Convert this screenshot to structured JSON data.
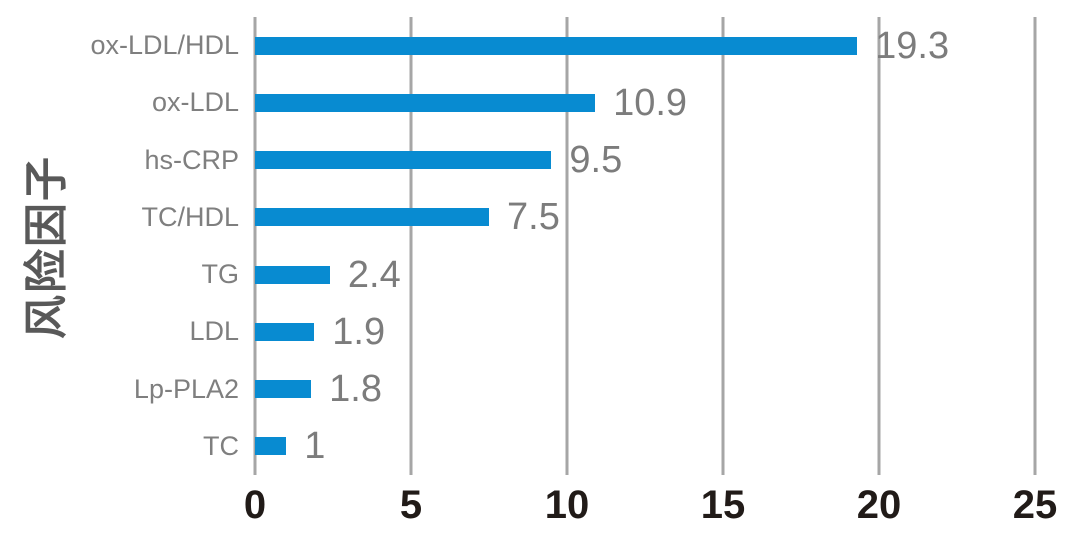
{
  "chart_data": {
    "type": "bar",
    "orientation": "horizontal",
    "title": "",
    "xlabel": "",
    "ylabel": "风险因子",
    "categories": [
      "ox-LDL/HDL",
      "ox-LDL",
      "hs-CRP",
      "TC/HDL",
      "TG",
      "LDL",
      "Lp-PLA2",
      "TC"
    ],
    "values": [
      19.3,
      10.9,
      9.5,
      7.5,
      2.4,
      1.9,
      1.8,
      1
    ],
    "value_labels": [
      "19.3",
      "10.9",
      "9.5",
      "7.5",
      "2.4",
      "1.9",
      "1.8",
      "1"
    ],
    "xlim": [
      0,
      25
    ],
    "x_ticks": [
      0,
      5,
      10,
      15,
      20,
      25
    ],
    "grid": true,
    "legend": false,
    "colors": {
      "bar": "#088bd1",
      "gridline": "#a6a6a6",
      "category_label": "#7f7f7f",
      "value_label": "#7c7c7c",
      "tick_label": "#211b18",
      "axis_title": "#595959",
      "background": "#ffffff"
    }
  }
}
